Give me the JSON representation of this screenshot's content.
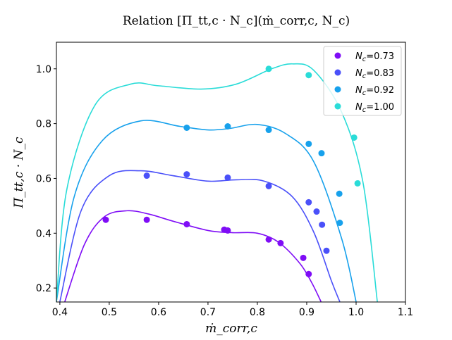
{
  "chart_data": {
    "type": "scatter",
    "title": "Relation [Π_tt,c · N_c](ṁ_corr,c, N_c)",
    "xlabel": "ṁ_corr,c",
    "ylabel": "Π_tt,c · N_c",
    "xlim": [
      0.393,
      1.1
    ],
    "ylim": [
      0.149,
      1.097
    ],
    "xticks": [
      0.4,
      0.5,
      0.6,
      0.7,
      0.8,
      0.9,
      1.0,
      1.1
    ],
    "xtick_labels": [
      "0.4",
      "0.5",
      "0.6",
      "0.7",
      "0.8",
      "0.9",
      "1.0",
      "1.1"
    ],
    "yticks": [
      0.2,
      0.4,
      0.6,
      0.8,
      1.0
    ],
    "ytick_labels": [
      "0.2",
      "0.4",
      "0.6",
      "0.8",
      "1.0"
    ],
    "grid": false,
    "legend_position": "top-right",
    "series": [
      {
        "name": "N_c=0.73",
        "legend_label": "=0.73",
        "color": "#7f0df6",
        "points": [
          [
            0.493,
            0.449
          ],
          [
            0.576,
            0.449
          ],
          [
            0.657,
            0.433
          ],
          [
            0.733,
            0.413
          ],
          [
            0.74,
            0.41
          ],
          [
            0.823,
            0.377
          ],
          [
            0.847,
            0.364
          ],
          [
            0.893,
            0.31
          ],
          [
            0.904,
            0.251
          ]
        ],
        "fit": [
          [
            0.41,
            0.15
          ],
          [
            0.45,
            0.36
          ],
          [
            0.49,
            0.46
          ],
          [
            0.536,
            0.482
          ],
          [
            0.58,
            0.47
          ],
          [
            0.629,
            0.444
          ],
          [
            0.7,
            0.41
          ],
          [
            0.75,
            0.402
          ],
          [
            0.8,
            0.4
          ],
          [
            0.843,
            0.367
          ],
          [
            0.886,
            0.29
          ],
          [
            0.91,
            0.22
          ],
          [
            0.929,
            0.15
          ]
        ]
      },
      {
        "name": "N_c=0.83",
        "legend_label": "=0.83",
        "color": "#4a50f9",
        "points": [
          [
            0.576,
            0.61
          ],
          [
            0.657,
            0.615
          ],
          [
            0.74,
            0.603
          ],
          [
            0.823,
            0.572
          ],
          [
            0.904,
            0.513
          ],
          [
            0.92,
            0.479
          ],
          [
            0.931,
            0.431
          ],
          [
            0.94,
            0.336
          ]
        ],
        "fit": [
          [
            0.4,
            0.15
          ],
          [
            0.443,
            0.482
          ],
          [
            0.5,
            0.61
          ],
          [
            0.564,
            0.628
          ],
          [
            0.629,
            0.61
          ],
          [
            0.7,
            0.59
          ],
          [
            0.757,
            0.595
          ],
          [
            0.814,
            0.59
          ],
          [
            0.871,
            0.533
          ],
          [
            0.914,
            0.405
          ],
          [
            0.95,
            0.226
          ],
          [
            0.967,
            0.15
          ]
        ]
      },
      {
        "name": "N_c=0.92",
        "legend_label": "=0.92",
        "color": "#17a1ec",
        "points": [
          [
            0.657,
            0.785
          ],
          [
            0.74,
            0.79
          ],
          [
            0.823,
            0.777
          ],
          [
            0.904,
            0.726
          ],
          [
            0.93,
            0.692
          ],
          [
            0.966,
            0.544
          ],
          [
            0.967,
            0.438
          ]
        ],
        "fit": [
          [
            0.393,
            0.15
          ],
          [
            0.429,
            0.533
          ],
          [
            0.486,
            0.738
          ],
          [
            0.564,
            0.81
          ],
          [
            0.643,
            0.79
          ],
          [
            0.7,
            0.777
          ],
          [
            0.743,
            0.782
          ],
          [
            0.8,
            0.797
          ],
          [
            0.857,
            0.764
          ],
          [
            0.914,
            0.662
          ],
          [
            0.971,
            0.379
          ],
          [
            1.0,
            0.15
          ]
        ]
      },
      {
        "name": "N_c=1.00",
        "legend_label": "=1.00",
        "color": "#2adcd8",
        "points": [
          [
            0.823,
            1.0
          ],
          [
            0.904,
            0.977
          ],
          [
            0.996,
            0.749
          ],
          [
            1.003,
            0.582
          ]
        ],
        "fit": [
          [
            0.393,
            0.15
          ],
          [
            0.414,
            0.559
          ],
          [
            0.471,
            0.867
          ],
          [
            0.543,
            0.944
          ],
          [
            0.6,
            0.938
          ],
          [
            0.686,
            0.926
          ],
          [
            0.757,
            0.944
          ],
          [
            0.829,
            1.0
          ],
          [
            0.871,
            1.018
          ],
          [
            0.914,
            0.995
          ],
          [
            0.971,
            0.841
          ],
          [
            1.014,
            0.585
          ],
          [
            1.043,
            0.15
          ]
        ]
      }
    ]
  }
}
